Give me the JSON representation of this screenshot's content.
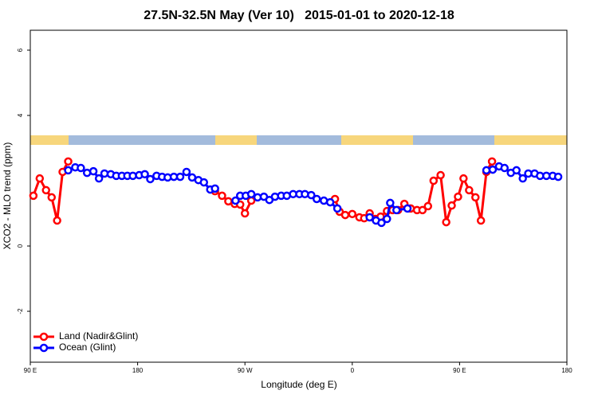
{
  "chart_data": {
    "type": "line",
    "title": "27.5N-32.5N May (Ver 10)   2015-01-01 to 2020-12-18",
    "x_label": "Longitude (deg E)",
    "y_label": "XCO2 - MLO trend (ppm)",
    "xlim": [
      90,
      540
    ],
    "ylim": [
      -3.56,
      6.61
    ],
    "xticks": [
      {
        "value": 90,
        "label": "90 E"
      },
      180,
      {
        "value": 270,
        "label": "90 W"
      },
      {
        "value": 360,
        "label": "0"
      },
      {
        "value": 450,
        "label": "90 E"
      },
      {
        "value": 540,
        "label": "180"
      }
    ],
    "yticks": [
      -2,
      0,
      4,
      6
    ],
    "legend": "bottom-left",
    "series": [
      {
        "name": "Land (Nadir&Glint)",
        "color": "#ff0000",
        "x": [
          92.6,
          97.9,
          103.2,
          107.9,
          112.5,
          117.1,
          121.8,
          null,
          244.9,
          250.8,
          256.1,
          261.4,
          266.0,
          270.0,
          275.3,
          null,
          345.5,
          349.4,
          354.1,
          360.0,
          366.0,
          370.0,
          374.6,
          379.2,
          383.8,
          389.1,
          393.8,
          398.4,
          403.7,
          409.0,
          414.3,
          418.9,
          423.5,
          428.2,
          434.1,
          438.8,
          443.4,
          448.7,
          453.3,
          458.0,
          463.3,
          467.9,
          472.5,
          477.2
        ],
        "values": [
          1.54,
          2.07,
          1.71,
          1.49,
          0.78,
          2.27,
          2.59,
          null,
          1.68,
          1.54,
          1.37,
          1.29,
          1.27,
          1.0,
          1.39,
          null,
          1.44,
          1.05,
          0.95,
          0.98,
          0.88,
          0.85,
          1.0,
          0.83,
          0.9,
          1.07,
          1.1,
          1.1,
          1.29,
          1.15,
          1.1,
          1.1,
          1.22,
          2.0,
          2.17,
          0.73,
          1.24,
          1.51,
          2.07,
          1.71,
          1.49,
          0.78,
          2.27,
          2.59
        ]
      },
      {
        "name": "Ocean (Glint)",
        "color": "#0000ff",
        "x": [
          121.8,
          127.7,
          132.4,
          137.6,
          142.9,
          147.6,
          152.2,
          157.5,
          162.1,
          166.8,
          171.4,
          176.0,
          181.3,
          186.0,
          190.6,
          195.9,
          200.5,
          205.2,
          210.4,
          215.7,
          221.0,
          225.7,
          231.0,
          235.6,
          240.9,
          244.9,
          null,
          262.1,
          266.0,
          270.7,
          275.3,
          280.6,
          285.9,
          290.5,
          295.2,
          300.4,
          305.1,
          310.4,
          315.7,
          320.3,
          325.6,
          330.2,
          336.2,
          341.5,
          347.5,
          null,
          374.6,
          379.9,
          384.5,
          389.1,
          391.8,
          397.1,
          406.3,
          null,
          472.5,
          477.8,
          483.1,
          487.7,
          493.0,
          497.7,
          503.0,
          507.6,
          512.9,
          517.5,
          522.8,
          528.1,
          532.7
        ],
        "values": [
          2.32,
          2.41,
          2.39,
          2.24,
          2.29,
          2.07,
          2.22,
          2.2,
          2.15,
          2.15,
          2.15,
          2.15,
          2.17,
          2.2,
          2.05,
          2.15,
          2.12,
          2.1,
          2.12,
          2.12,
          2.27,
          2.1,
          2.02,
          1.95,
          1.73,
          1.76,
          null,
          1.39,
          1.54,
          1.54,
          1.59,
          1.49,
          1.51,
          1.41,
          1.51,
          1.54,
          1.54,
          1.59,
          1.59,
          1.59,
          1.56,
          1.44,
          1.39,
          1.34,
          1.15,
          null,
          0.88,
          0.78,
          0.71,
          0.83,
          1.32,
          1.1,
          1.15,
          null,
          2.32,
          2.34,
          2.44,
          2.39,
          2.24,
          2.32,
          2.07,
          2.22,
          2.22,
          2.15,
          2.15,
          2.15,
          2.12
        ]
      }
    ]
  }
}
